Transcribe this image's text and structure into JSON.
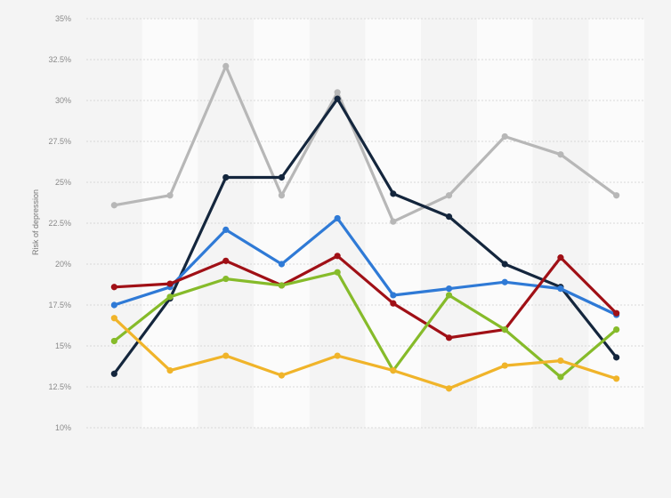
{
  "chart_data": {
    "type": "line",
    "title": "",
    "xlabel": "",
    "ylabel": "Risk of depression",
    "ylim": [
      10,
      35
    ],
    "y_ticks": [
      {
        "value": 35,
        "label": "35%"
      },
      {
        "value": 32.5,
        "label": "32.5%"
      },
      {
        "value": 30,
        "label": "30%"
      },
      {
        "value": 27.5,
        "label": "27.5%"
      },
      {
        "value": 25,
        "label": "25%"
      },
      {
        "value": 22.5,
        "label": "22.5%"
      },
      {
        "value": 20,
        "label": "20%"
      },
      {
        "value": 17.5,
        "label": "17.5%"
      },
      {
        "value": 15,
        "label": "15%"
      },
      {
        "value": 12.5,
        "label": "12.5%"
      },
      {
        "value": 10,
        "label": "10%"
      }
    ],
    "categories": [
      "",
      "",
      "",
      "",
      "",
      "",
      "",
      "",
      "",
      ""
    ],
    "grid": true,
    "series": [
      {
        "color": "#b7b7b7",
        "values": [
          23.6,
          24.2,
          32.1,
          24.2,
          30.5,
          22.6,
          24.2,
          27.8,
          26.7,
          24.2
        ]
      },
      {
        "color": "#14263d",
        "values": [
          13.3,
          17.9,
          25.3,
          25.3,
          30.1,
          24.3,
          22.9,
          20.0,
          18.6,
          14.3
        ]
      },
      {
        "color": "#2f7ad6",
        "values": [
          17.5,
          18.6,
          22.1,
          20.0,
          22.8,
          18.1,
          18.5,
          18.9,
          18.5,
          16.9
        ]
      },
      {
        "color": "#a01016",
        "values": [
          18.6,
          18.8,
          20.2,
          18.7,
          20.5,
          17.6,
          15.5,
          16.0,
          20.4,
          17.0
        ]
      },
      {
        "color": "#86bb2a",
        "values": [
          15.3,
          18.0,
          19.1,
          18.7,
          19.5,
          13.5,
          18.1,
          16.0,
          13.1,
          16.0
        ]
      },
      {
        "color": "#f0b42a",
        "values": [
          16.7,
          13.5,
          14.4,
          13.2,
          14.4,
          13.5,
          12.4,
          13.8,
          14.1,
          13.0
        ]
      }
    ]
  }
}
